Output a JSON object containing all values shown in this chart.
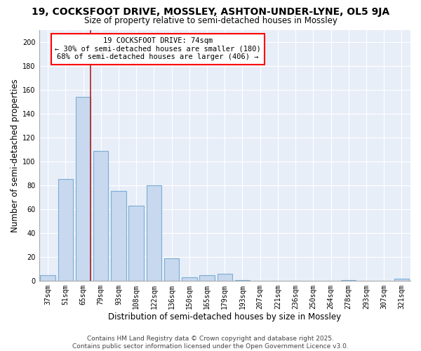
{
  "title": "19, COCKSFOOT DRIVE, MOSSLEY, ASHTON-UNDER-LYNE, OL5 9JA",
  "subtitle": "Size of property relative to semi-detached houses in Mossley",
  "xlabel": "Distribution of semi-detached houses by size in Mossley",
  "ylabel": "Number of semi-detached properties",
  "bar_color": "#c8d8ee",
  "bar_edge_color": "#7aadd4",
  "plot_bg_color": "#e8eef8",
  "categories": [
    "37sqm",
    "51sqm",
    "65sqm",
    "79sqm",
    "93sqm",
    "108sqm",
    "122sqm",
    "136sqm",
    "150sqm",
    "165sqm",
    "179sqm",
    "193sqm",
    "207sqm",
    "221sqm",
    "236sqm",
    "250sqm",
    "264sqm",
    "278sqm",
    "293sqm",
    "307sqm",
    "321sqm"
  ],
  "values": [
    5,
    85,
    154,
    109,
    75,
    63,
    80,
    19,
    3,
    5,
    6,
    1,
    0,
    0,
    0,
    0,
    0,
    1,
    0,
    0,
    2
  ],
  "ylim": [
    0,
    210
  ],
  "yticks": [
    0,
    20,
    40,
    60,
    80,
    100,
    120,
    140,
    160,
    180,
    200
  ],
  "property_line_index": 2,
  "property_label": "19 COCKSFOOT DRIVE: 74sqm",
  "pct_smaller": "30%",
  "count_smaller": 180,
  "pct_larger": "68%",
  "count_larger": 406,
  "footer_line1": "Contains HM Land Registry data © Crown copyright and database right 2025.",
  "footer_line2": "Contains public sector information licensed under the Open Government Licence v3.0.",
  "title_fontsize": 10,
  "subtitle_fontsize": 8.5,
  "axis_label_fontsize": 8.5,
  "tick_fontsize": 7,
  "annotation_fontsize": 7.5,
  "footer_fontsize": 6.5
}
